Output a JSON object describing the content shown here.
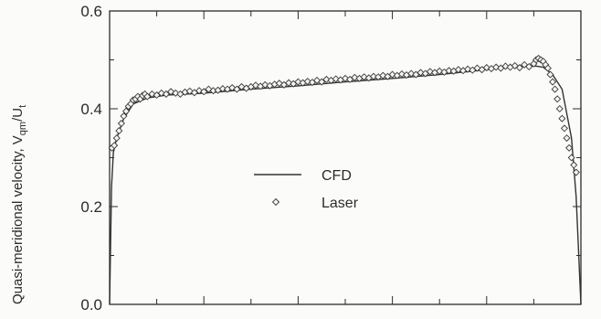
{
  "chart_data": {
    "type": "line",
    "title": "",
    "xlabel": "",
    "ylabel": "Quasi-meridional velocity, V",
    "ylabel_sub1": "qm",
    "ylabel_mid": "/U",
    "ylabel_sub2": "t",
    "xlim": [
      0,
      1
    ],
    "ylim": [
      0,
      0.6
    ],
    "yticks": [
      "0.0",
      "0.2",
      "0.4",
      "0.6"
    ],
    "grid": false,
    "legend_position": "center",
    "series": [
      {
        "name": "CFD",
        "style": "line",
        "x": [
          0.0,
          0.004,
          0.008,
          0.015,
          0.03,
          0.05,
          0.08,
          0.12,
          0.2,
          0.3,
          0.4,
          0.5,
          0.6,
          0.7,
          0.8,
          0.85,
          0.88,
          0.9,
          0.92,
          0.94,
          0.96,
          0.98,
          0.99,
          1.0
        ],
        "y": [
          0.0,
          0.24,
          0.31,
          0.34,
          0.38,
          0.41,
          0.422,
          0.428,
          0.432,
          0.44,
          0.447,
          0.455,
          0.462,
          0.47,
          0.48,
          0.485,
          0.488,
          0.488,
          0.485,
          0.47,
          0.44,
          0.34,
          0.22,
          0.0
        ]
      },
      {
        "name": "Laser",
        "style": "markers",
        "marker": "diamond",
        "x": [
          0.005,
          0.01,
          0.015,
          0.02,
          0.025,
          0.03,
          0.035,
          0.04,
          0.045,
          0.05,
          0.055,
          0.06,
          0.065,
          0.07,
          0.075,
          0.08,
          0.09,
          0.1,
          0.11,
          0.12,
          0.13,
          0.14,
          0.15,
          0.16,
          0.17,
          0.18,
          0.19,
          0.2,
          0.21,
          0.22,
          0.23,
          0.24,
          0.25,
          0.26,
          0.27,
          0.28,
          0.29,
          0.3,
          0.31,
          0.32,
          0.33,
          0.34,
          0.35,
          0.36,
          0.37,
          0.38,
          0.39,
          0.4,
          0.41,
          0.42,
          0.43,
          0.44,
          0.45,
          0.46,
          0.47,
          0.48,
          0.49,
          0.5,
          0.51,
          0.52,
          0.53,
          0.54,
          0.55,
          0.56,
          0.57,
          0.58,
          0.59,
          0.6,
          0.61,
          0.62,
          0.63,
          0.64,
          0.65,
          0.66,
          0.67,
          0.68,
          0.69,
          0.7,
          0.71,
          0.72,
          0.73,
          0.74,
          0.75,
          0.76,
          0.77,
          0.78,
          0.79,
          0.8,
          0.81,
          0.82,
          0.83,
          0.84,
          0.85,
          0.86,
          0.87,
          0.88,
          0.89,
          0.9,
          0.905,
          0.91,
          0.915,
          0.92,
          0.925,
          0.93,
          0.935,
          0.94,
          0.945,
          0.95,
          0.955,
          0.96,
          0.965,
          0.97,
          0.975,
          0.98,
          0.985,
          0.99
        ],
        "y": [
          0.32,
          0.325,
          0.34,
          0.355,
          0.37,
          0.385,
          0.395,
          0.405,
          0.41,
          0.418,
          0.42,
          0.425,
          0.42,
          0.427,
          0.43,
          0.425,
          0.43,
          0.428,
          0.432,
          0.43,
          0.435,
          0.432,
          0.43,
          0.434,
          0.436,
          0.433,
          0.437,
          0.435,
          0.44,
          0.437,
          0.438,
          0.441,
          0.44,
          0.443,
          0.44,
          0.445,
          0.442,
          0.445,
          0.448,
          0.446,
          0.449,
          0.447,
          0.45,
          0.452,
          0.449,
          0.453,
          0.451,
          0.455,
          0.453,
          0.456,
          0.454,
          0.458,
          0.455,
          0.46,
          0.458,
          0.461,
          0.459,
          0.462,
          0.46,
          0.464,
          0.462,
          0.465,
          0.463,
          0.466,
          0.465,
          0.468,
          0.466,
          0.47,
          0.468,
          0.471,
          0.469,
          0.472,
          0.47,
          0.474,
          0.472,
          0.476,
          0.474,
          0.477,
          0.475,
          0.478,
          0.477,
          0.48,
          0.478,
          0.481,
          0.479,
          0.483,
          0.48,
          0.484,
          0.482,
          0.485,
          0.483,
          0.487,
          0.485,
          0.488,
          0.484,
          0.49,
          0.486,
          0.492,
          0.5,
          0.503,
          0.5,
          0.497,
          0.49,
          0.483,
          0.47,
          0.455,
          0.44,
          0.42,
          0.4,
          0.38,
          0.36,
          0.34,
          0.32,
          0.3,
          0.285,
          0.27
        ]
      }
    ]
  }
}
